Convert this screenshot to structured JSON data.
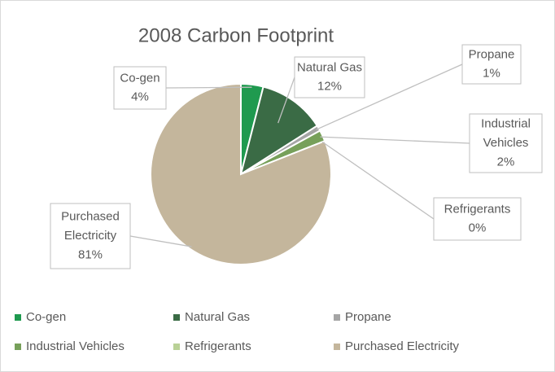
{
  "chart_data": {
    "type": "pie",
    "title": "2008 Carbon Footprint",
    "categories": [
      "Co-gen",
      "Natural Gas",
      "Propane",
      "Industrial Vehicles",
      "Refrigerants",
      "Purchased Electricity"
    ],
    "values": [
      4,
      12,
      1,
      2,
      0,
      81
    ],
    "value_labels": [
      "4%",
      "12%",
      "1%",
      "2%",
      "0%",
      "81%"
    ],
    "colors": [
      "#1f9a4f",
      "#3a6b45",
      "#a5a5a5",
      "#77a05a",
      "#b9d196",
      "#c4b69c"
    ],
    "legend": "bottom"
  }
}
